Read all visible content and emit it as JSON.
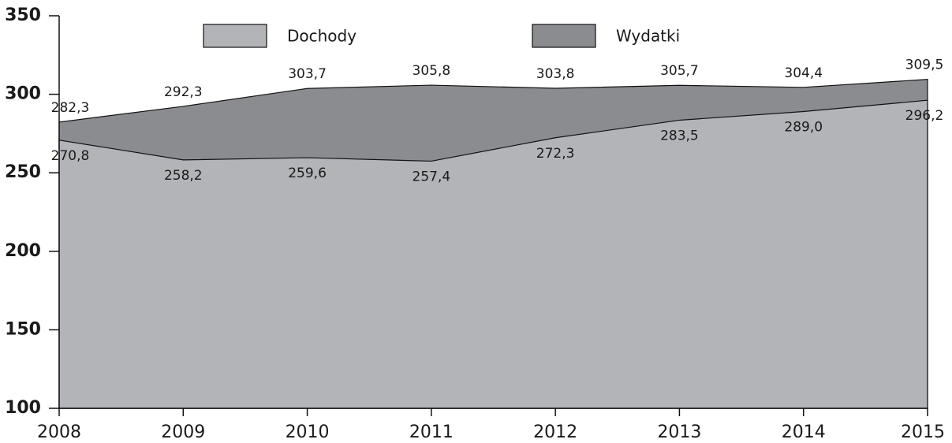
{
  "chart_data": {
    "type": "area",
    "categories": [
      "2008",
      "2009",
      "2010",
      "2011",
      "2012",
      "2013",
      "2014",
      "2015"
    ],
    "series": [
      {
        "name": "Wydatki",
        "color": "#8b8c90",
        "values": [
          282.3,
          292.3,
          303.7,
          305.8,
          303.8,
          305.7,
          304.4,
          309.5
        ],
        "value_labels": [
          "282,3",
          "292,3",
          "303,7",
          "305,8",
          "303,8",
          "305,7",
          "304,4",
          "309,5"
        ]
      },
      {
        "name": "Dochody",
        "color": "#b3b4b8",
        "values": [
          270.8,
          258.2,
          259.6,
          257.4,
          272.3,
          283.5,
          289.0,
          296.2
        ],
        "value_labels": [
          "270,8",
          "258,2",
          "259,6",
          "257,4",
          "272,3",
          "283,5",
          "289,0",
          "296,2"
        ]
      }
    ],
    "ylim": [
      100,
      350
    ],
    "yticks": [
      100,
      150,
      200,
      250,
      300,
      350
    ],
    "grid": false
  }
}
